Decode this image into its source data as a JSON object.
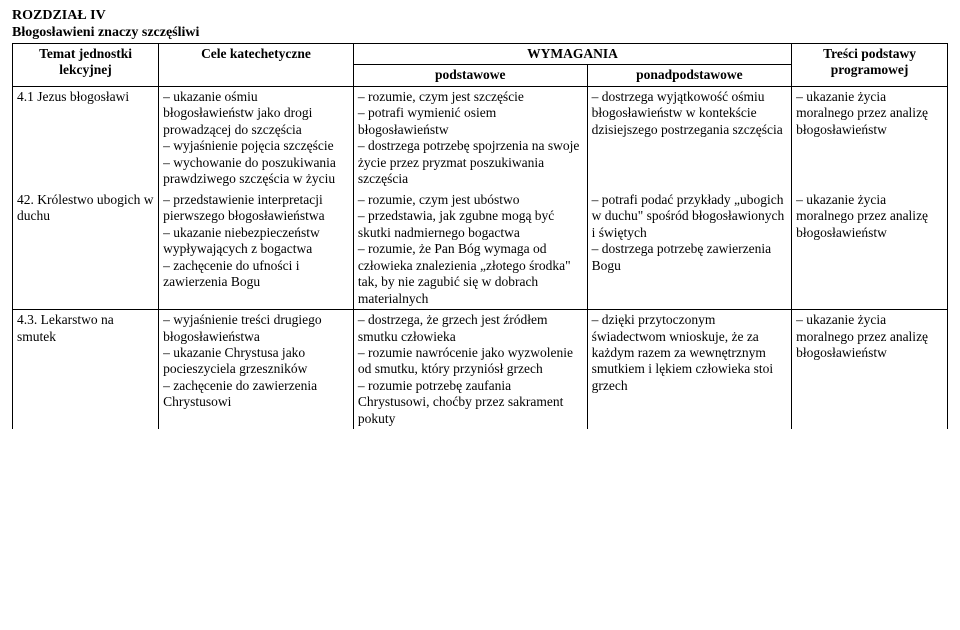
{
  "header": {
    "chapter": "ROZDZIAŁ IV",
    "subtitle": "Błogosławieni znaczy szczęśliwi"
  },
  "table": {
    "head": {
      "temat": "Temat jednostki lekcyjnej",
      "cele": "Cele katechetyczne",
      "wymagania": "WYMAGANIA",
      "podstawowe": "podstawowe",
      "ponadpodstawowe": "ponadpodstawowe",
      "tresci": "Treści podstawy programowej"
    },
    "rows": [
      {
        "temat": "4.1 Jezus błogosławi",
        "cele": "– ukazanie ośmiu błogosławieństw jako drogi prowadzącej do szczęścia\n– wyjaśnienie pojęcia szczęście\n– wychowanie do poszukiwania prawdziwego szczęścia w życiu",
        "podstawowe": "– rozumie, czym jest szczęście\n– potrafi wymienić osiem błogosławieństw\n– dostrzega potrzebę spojrzenia na swoje życie przez pryzmat poszukiwania szczęścia",
        "ponad": "– dostrzega wyjątkowość ośmiu błogosławieństw w kontekście dzisiejszego postrzegania szczęścia",
        "tresci": "– ukazanie życia moralnego przez analizę błogosławieństw"
      },
      {
        "temat": "42. Królestwo ubogich w duchu",
        "cele": "– przedstawienie interpretacji pierwszego błogosławieństwa\n– ukazanie niebezpieczeństw wypływających z bogactwa\n– zachęcenie do ufności i zawierzenia Bogu",
        "podstawowe": "– rozumie, czym jest ubóstwo\n– przedstawia, jak zgubne mogą być skutki nadmiernego bogactwa\n– rozumie, że Pan Bóg wymaga od człowieka znalezienia „złotego środka\" tak, by nie zagubić się w dobrach materialnych",
        "ponad": "– potrafi podać przykłady „ubogich w duchu\" spośród błogosławionych i świętych\n– dostrzega potrzebę zawierzenia Bogu",
        "tresci": "– ukazanie życia moralnego przez analizę błogosławieństw"
      },
      {
        "temat": "4.3. Lekarstwo na smutek",
        "cele": "– wyjaśnienie treści drugiego błogosławieństwa\n– ukazanie Chrystusa jako pocieszyciela grzeszników\n– zachęcenie do zawierzenia Chrystusowi",
        "podstawowe": "– dostrzega, że grzech jest źródłem smutku człowieka\n– rozumie nawrócenie jako wyzwolenie od smutku, który przyniósł grzech\n– rozumie potrzebę zaufania Chrystusowi, choćby przez sakrament pokuty",
        "ponad": "– dzięki przytoczonym świadectwom wnioskuje, że za każdym razem za wewnętrznym smutkiem i lękiem człowieka stoi grzech",
        "tresci": "– ukazanie życia moralnego przez analizę błogosławieństw"
      }
    ]
  }
}
